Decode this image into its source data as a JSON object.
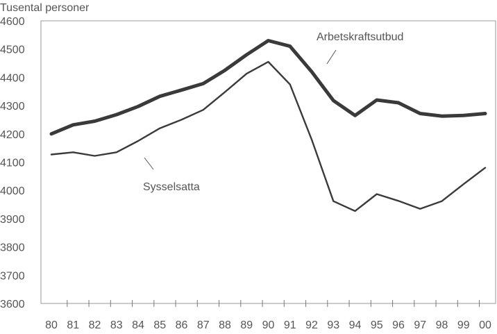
{
  "chart_data": {
    "type": "line",
    "title": "",
    "ylabel": "Tusental personer",
    "xlabel": "",
    "ylim": [
      3600,
      4600
    ],
    "yticks": [
      3600,
      3700,
      3800,
      3900,
      4000,
      4100,
      4200,
      4300,
      4400,
      4500,
      4600
    ],
    "categories": [
      "80",
      "81",
      "82",
      "83",
      "84",
      "85",
      "86",
      "87",
      "88",
      "89",
      "90",
      "91",
      "92",
      "93",
      "94",
      "95",
      "96",
      "97",
      "98",
      "99",
      "00"
    ],
    "grid": false,
    "series": [
      {
        "name": "Arbetskraftsutbud",
        "color": "#3a3a3a",
        "values": [
          4200,
          4232,
          4245,
          4268,
          4297,
          4333,
          4355,
          4378,
          4425,
          4480,
          4530,
          4510,
          4420,
          4318,
          4265,
          4320,
          4310,
          4272,
          4263,
          4265,
          4272
        ]
      },
      {
        "name": "Sysselsatta",
        "color": "#3a3a3a",
        "values": [
          4127,
          4135,
          4122,
          4135,
          4175,
          4220,
          4250,
          4285,
          4348,
          4413,
          4455,
          4375,
          4180,
          3962,
          3927,
          3987,
          3963,
          3935,
          3962,
          4022,
          4080
        ]
      }
    ]
  }
}
